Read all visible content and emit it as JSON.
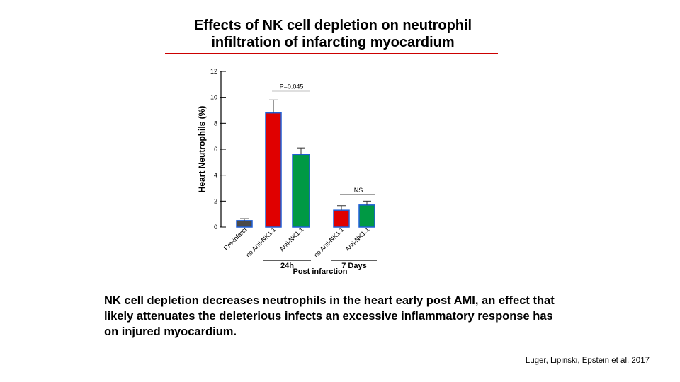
{
  "title": {
    "line1": "Effects of NK cell depletion on neutrophil",
    "line2": "infiltration of infarcting myocardium"
  },
  "note": "NK cell depletion decreases neutrophils in the heart early post AMI, an effect that likely attenuates the deleterious infects an excessive inflammatory response has on injured myocardium.",
  "citation": "Luger, Lipinski, Epstein et al. 2017",
  "colors": {
    "title_rule": "#cc0000",
    "bar_gray": "#4a4a4a",
    "bar_blue": "#1f5fd6",
    "bar_red": "#e00000",
    "bar_green": "#009944"
  },
  "chart_data": {
    "type": "bar",
    "ylabel": "Heart Neutrophils (%)",
    "ylim": [
      0,
      12
    ],
    "yticks": [
      0,
      2,
      4,
      6,
      8,
      10,
      12
    ],
    "grid": false,
    "categories": [
      "Pre-infarct",
      "no Anti-NK1.1",
      "Anti-NK1.1",
      "no Anti-NK1.1",
      "Anti-NK1.1"
    ],
    "values": [
      0.5,
      8.8,
      5.6,
      1.3,
      1.7
    ],
    "errors": [
      0.15,
      1.0,
      0.5,
      0.35,
      0.3
    ],
    "bar_colors": [
      "#4a4a4a",
      "#e00000",
      "#009944",
      "#e00000",
      "#009944"
    ],
    "groups": [
      {
        "label": "24h",
        "members": [
          1,
          2
        ]
      },
      {
        "label": "7 Days",
        "members": [
          3,
          4
        ]
      }
    ],
    "group_caption": "Post infarction",
    "annotations": [
      {
        "text": "P=0.045",
        "between": [
          1,
          2
        ],
        "y": 10.5
      },
      {
        "text": "NS",
        "between": [
          3,
          4
        ],
        "y": 2.5
      }
    ]
  }
}
